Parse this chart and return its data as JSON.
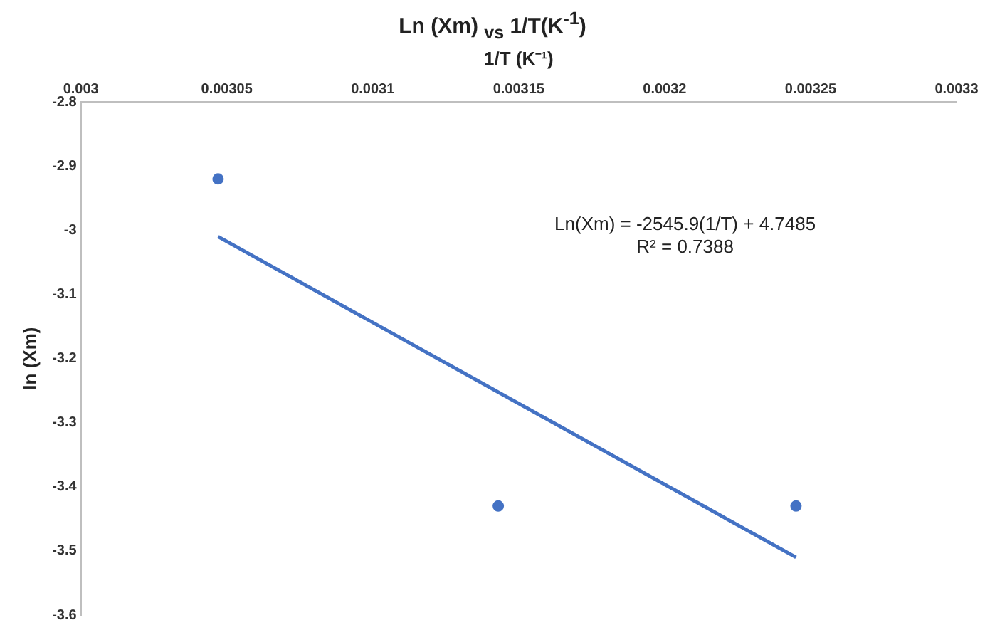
{
  "chart_data": {
    "type": "scatter",
    "title": "Ln (Xm) $_{vs}$ 1/T(K$^{-1}$)",
    "xlabel": "1/T (K⁻¹)",
    "ylabel": "ln (Xm)",
    "x": [
      0.003047,
      0.003143,
      0.003245
    ],
    "series": [
      {
        "color": "#4472c4",
        "marker": "circle",
        "values": [
          -2.92,
          -3.43,
          -3.43
        ]
      },
      {
        "type": "line",
        "color": "#4472c4",
        "x": [
          0.003047,
          0.003245
        ],
        "values": [
          -3.01,
          -3.51
        ]
      }
    ],
    "xlim": [
      0.003,
      0.0033
    ],
    "xticks": [
      0.003,
      0.00305,
      0.0031,
      0.00315,
      0.0032,
      0.00325,
      0.0033
    ],
    "ylim": [
      -3.6,
      -2.8
    ],
    "yticks": [
      -2.8,
      -2.9,
      -3,
      -3.1,
      -3.2,
      -3.3,
      -3.4,
      -3.5,
      -3.6
    ],
    "grid": false,
    "legend": false,
    "annotations": [
      "Ln(Xm) = -2545.9(1/T) + 4.7485\nR² = 0.7388"
    ]
  }
}
